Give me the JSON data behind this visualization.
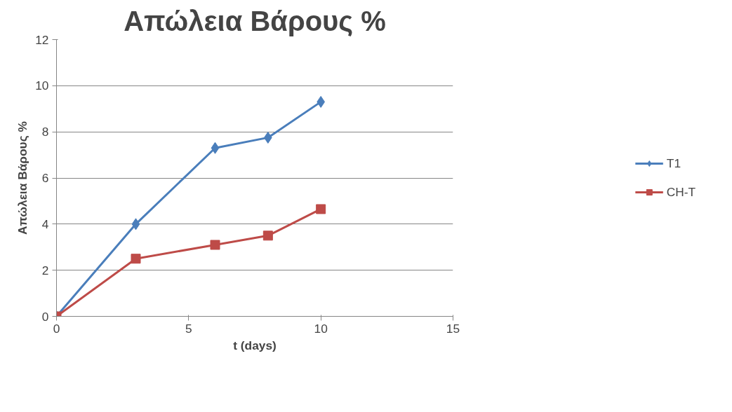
{
  "chart_data": {
    "type": "line",
    "title": "Απώλεια Βάρους %",
    "xlabel": "t (days)",
    "ylabel": "Απώλεια Βάρους %",
    "series": [
      {
        "name": "T1",
        "color": "#4a7ebb",
        "marker": "diamond",
        "x": [
          0,
          3,
          6,
          8,
          10
        ],
        "values": [
          0,
          4.0,
          7.3,
          7.75,
          9.3
        ]
      },
      {
        "name": "CH-T",
        "color": "#be4b48",
        "marker": "square",
        "x": [
          0,
          3,
          6,
          8,
          10
        ],
        "values": [
          0,
          2.5,
          3.1,
          3.5,
          4.65
        ]
      }
    ],
    "xlim": [
      0,
      15
    ],
    "xticks": [
      0,
      5,
      10,
      15
    ],
    "ylim": [
      0,
      12
    ],
    "yticks": [
      0,
      2,
      4,
      6,
      8,
      10,
      12
    ],
    "grid": "y",
    "legend": "right",
    "line_style": "solid"
  }
}
